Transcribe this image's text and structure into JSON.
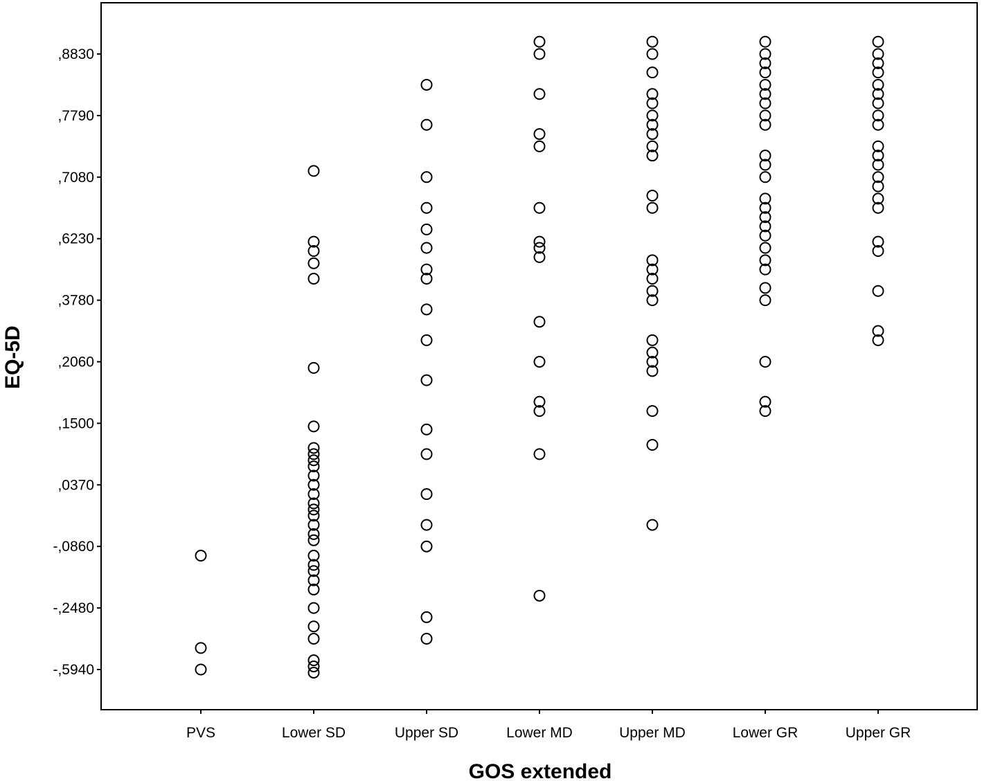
{
  "chart_data": {
    "type": "scatter",
    "xlabel": "GOS extended",
    "ylabel": "EQ-5D",
    "categories": [
      "PVS",
      "Lower SD",
      "Upper SD",
      "Lower MD",
      "Upper MD",
      "Lower GR",
      "Upper GR"
    ],
    "y_ticks": [
      ",8830",
      ",7790",
      ",7080",
      ",6230",
      ",3780",
      ",2060",
      ",1500",
      ",0370",
      "-,0860",
      "-,2480",
      "-,5940"
    ],
    "y_axis_note": "ordinal scale: each tick is one rank step; point positions given as fractional rank index (0 = -,5940 ... 10 = ,8830)",
    "ylim_rank": [
      -0.6,
      10.6
    ],
    "grid": false,
    "legend": "none",
    "series": [
      {
        "points": [
          {
            "x": "PVS",
            "y": 1.85
          },
          {
            "x": "PVS",
            "y": 0.35
          },
          {
            "x": "PVS",
            "y": 0.0
          },
          {
            "x": "Lower SD",
            "y": 8.1
          },
          {
            "x": "Lower SD",
            "y": 6.95
          },
          {
            "x": "Lower SD",
            "y": 6.8
          },
          {
            "x": "Lower SD",
            "y": 6.6
          },
          {
            "x": "Lower SD",
            "y": 6.35
          },
          {
            "x": "Lower SD",
            "y": 4.9
          },
          {
            "x": "Lower SD",
            "y": 3.95
          },
          {
            "x": "Lower SD",
            "y": 3.6
          },
          {
            "x": "Lower SD",
            "y": 3.5
          },
          {
            "x": "Lower SD",
            "y": 3.4
          },
          {
            "x": "Lower SD",
            "y": 3.3
          },
          {
            "x": "Lower SD",
            "y": 3.15
          },
          {
            "x": "Lower SD",
            "y": 3.0
          },
          {
            "x": "Lower SD",
            "y": 2.85
          },
          {
            "x": "Lower SD",
            "y": 2.7
          },
          {
            "x": "Lower SD",
            "y": 2.6
          },
          {
            "x": "Lower SD",
            "y": 2.5
          },
          {
            "x": "Lower SD",
            "y": 2.35
          },
          {
            "x": "Lower SD",
            "y": 2.2
          },
          {
            "x": "Lower SD",
            "y": 2.1
          },
          {
            "x": "Lower SD",
            "y": 1.85
          },
          {
            "x": "Lower SD",
            "y": 1.7
          },
          {
            "x": "Lower SD",
            "y": 1.6
          },
          {
            "x": "Lower SD",
            "y": 1.45
          },
          {
            "x": "Lower SD",
            "y": 1.3
          },
          {
            "x": "Lower SD",
            "y": 1.0
          },
          {
            "x": "Lower SD",
            "y": 0.7
          },
          {
            "x": "Lower SD",
            "y": 0.5
          },
          {
            "x": "Lower SD",
            "y": 0.15
          },
          {
            "x": "Lower SD",
            "y": 0.05
          },
          {
            "x": "Lower SD",
            "y": -0.05
          },
          {
            "x": "Upper SD",
            "y": 9.5
          },
          {
            "x": "Upper SD",
            "y": 8.85
          },
          {
            "x": "Upper SD",
            "y": 8.0
          },
          {
            "x": "Upper SD",
            "y": 7.5
          },
          {
            "x": "Upper SD",
            "y": 7.15
          },
          {
            "x": "Upper SD",
            "y": 6.85
          },
          {
            "x": "Upper SD",
            "y": 6.5
          },
          {
            "x": "Upper SD",
            "y": 6.35
          },
          {
            "x": "Upper SD",
            "y": 5.85
          },
          {
            "x": "Upper SD",
            "y": 5.35
          },
          {
            "x": "Upper SD",
            "y": 4.7
          },
          {
            "x": "Upper SD",
            "y": 3.9
          },
          {
            "x": "Upper SD",
            "y": 3.5
          },
          {
            "x": "Upper SD",
            "y": 2.85
          },
          {
            "x": "Upper SD",
            "y": 2.35
          },
          {
            "x": "Upper SD",
            "y": 2.0
          },
          {
            "x": "Upper SD",
            "y": 0.85
          },
          {
            "x": "Upper SD",
            "y": 0.5
          },
          {
            "x": "Lower MD",
            "y": 10.2
          },
          {
            "x": "Lower MD",
            "y": 10.0
          },
          {
            "x": "Lower MD",
            "y": 9.35
          },
          {
            "x": "Lower MD",
            "y": 8.7
          },
          {
            "x": "Lower MD",
            "y": 8.5
          },
          {
            "x": "Lower MD",
            "y": 7.5
          },
          {
            "x": "Lower MD",
            "y": 6.95
          },
          {
            "x": "Lower MD",
            "y": 6.85
          },
          {
            "x": "Lower MD",
            "y": 6.7
          },
          {
            "x": "Lower MD",
            "y": 5.65
          },
          {
            "x": "Lower MD",
            "y": 5.0
          },
          {
            "x": "Lower MD",
            "y": 4.35
          },
          {
            "x": "Lower MD",
            "y": 4.2
          },
          {
            "x": "Lower MD",
            "y": 3.5
          },
          {
            "x": "Lower MD",
            "y": 1.2
          },
          {
            "x": "Upper MD",
            "y": 10.2
          },
          {
            "x": "Upper MD",
            "y": 10.0
          },
          {
            "x": "Upper MD",
            "y": 9.7
          },
          {
            "x": "Upper MD",
            "y": 9.35
          },
          {
            "x": "Upper MD",
            "y": 9.2
          },
          {
            "x": "Upper MD",
            "y": 9.0
          },
          {
            "x": "Upper MD",
            "y": 8.85
          },
          {
            "x": "Upper MD",
            "y": 8.7
          },
          {
            "x": "Upper MD",
            "y": 8.5
          },
          {
            "x": "Upper MD",
            "y": 8.35
          },
          {
            "x": "Upper MD",
            "y": 7.7
          },
          {
            "x": "Upper MD",
            "y": 7.5
          },
          {
            "x": "Upper MD",
            "y": 6.65
          },
          {
            "x": "Upper MD",
            "y": 6.5
          },
          {
            "x": "Upper MD",
            "y": 6.35
          },
          {
            "x": "Upper MD",
            "y": 6.15
          },
          {
            "x": "Upper MD",
            "y": 6.0
          },
          {
            "x": "Upper MD",
            "y": 5.35
          },
          {
            "x": "Upper MD",
            "y": 5.15
          },
          {
            "x": "Upper MD",
            "y": 5.0
          },
          {
            "x": "Upper MD",
            "y": 4.85
          },
          {
            "x": "Upper MD",
            "y": 4.2
          },
          {
            "x": "Upper MD",
            "y": 3.65
          },
          {
            "x": "Upper MD",
            "y": 2.35
          },
          {
            "x": "Lower GR",
            "y": 10.2
          },
          {
            "x": "Lower GR",
            "y": 10.0
          },
          {
            "x": "Lower GR",
            "y": 9.85
          },
          {
            "x": "Lower GR",
            "y": 9.7
          },
          {
            "x": "Lower GR",
            "y": 9.5
          },
          {
            "x": "Lower GR",
            "y": 9.35
          },
          {
            "x": "Lower GR",
            "y": 9.2
          },
          {
            "x": "Lower GR",
            "y": 9.0
          },
          {
            "x": "Lower GR",
            "y": 8.85
          },
          {
            "x": "Lower GR",
            "y": 8.35
          },
          {
            "x": "Lower GR",
            "y": 8.2
          },
          {
            "x": "Lower GR",
            "y": 8.0
          },
          {
            "x": "Lower GR",
            "y": 7.65
          },
          {
            "x": "Lower GR",
            "y": 7.5
          },
          {
            "x": "Lower GR",
            "y": 7.35
          },
          {
            "x": "Lower GR",
            "y": 7.2
          },
          {
            "x": "Lower GR",
            "y": 7.05
          },
          {
            "x": "Lower GR",
            "y": 6.85
          },
          {
            "x": "Lower GR",
            "y": 6.65
          },
          {
            "x": "Lower GR",
            "y": 6.5
          },
          {
            "x": "Lower GR",
            "y": 6.2
          },
          {
            "x": "Lower GR",
            "y": 6.0
          },
          {
            "x": "Lower GR",
            "y": 5.0
          },
          {
            "x": "Lower GR",
            "y": 4.35
          },
          {
            "x": "Lower GR",
            "y": 4.2
          },
          {
            "x": "Upper GR",
            "y": 10.2
          },
          {
            "x": "Upper GR",
            "y": 10.0
          },
          {
            "x": "Upper GR",
            "y": 9.85
          },
          {
            "x": "Upper GR",
            "y": 9.7
          },
          {
            "x": "Upper GR",
            "y": 9.5
          },
          {
            "x": "Upper GR",
            "y": 9.35
          },
          {
            "x": "Upper GR",
            "y": 9.2
          },
          {
            "x": "Upper GR",
            "y": 9.0
          },
          {
            "x": "Upper GR",
            "y": 8.85
          },
          {
            "x": "Upper GR",
            "y": 8.5
          },
          {
            "x": "Upper GR",
            "y": 8.35
          },
          {
            "x": "Upper GR",
            "y": 8.2
          },
          {
            "x": "Upper GR",
            "y": 8.0
          },
          {
            "x": "Upper GR",
            "y": 7.85
          },
          {
            "x": "Upper GR",
            "y": 7.65
          },
          {
            "x": "Upper GR",
            "y": 7.5
          },
          {
            "x": "Upper GR",
            "y": 6.95
          },
          {
            "x": "Upper GR",
            "y": 6.8
          },
          {
            "x": "Upper GR",
            "y": 6.15
          },
          {
            "x": "Upper GR",
            "y": 5.5
          },
          {
            "x": "Upper GR",
            "y": 5.35
          }
        ]
      }
    ]
  }
}
